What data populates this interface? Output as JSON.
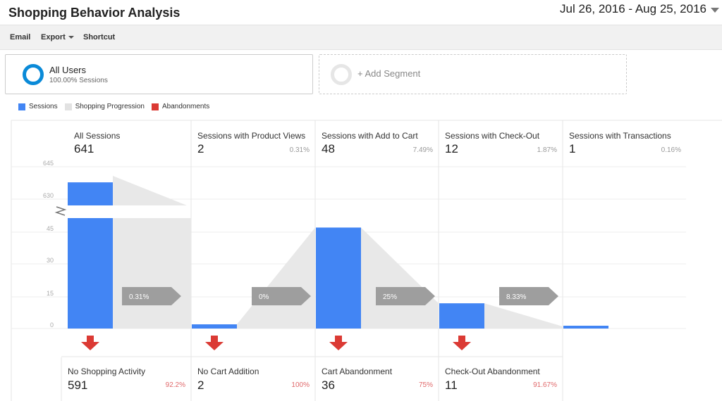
{
  "header": {
    "title": "Shopping Behavior Analysis",
    "date_range": "Jul 26, 2016 - Aug 25, 2016"
  },
  "toolbar": {
    "email_label": "Email",
    "export_label": "Export",
    "shortcut_label": "Shortcut"
  },
  "segments": {
    "active": {
      "name": "All Users",
      "detail": "100.00% Sessions"
    },
    "add_label": "+ Add Segment"
  },
  "legend": {
    "sessions": "Sessions",
    "progression": "Shopping Progression",
    "abandonments": "Abandonments"
  },
  "colors": {
    "sessions": "#4285f4",
    "progression": "#e8e8e8",
    "abandonment": "#db3a34",
    "arrow_tag": "#9e9e9e",
    "segment_donut": "#0a8ad8"
  },
  "stages": [
    {
      "label": "All Sessions",
      "count": "641",
      "pct": ""
    },
    {
      "label": "Sessions with Product Views",
      "count": "2",
      "pct": "0.31%"
    },
    {
      "label": "Sessions with Add to Cart",
      "count": "48",
      "pct": "7.49%"
    },
    {
      "label": "Sessions with Check-Out",
      "count": "12",
      "pct": "1.87%"
    },
    {
      "label": "Sessions with Transactions",
      "count": "1",
      "pct": "0.16%"
    }
  ],
  "abandonments": [
    {
      "label": "No Shopping Activity",
      "count": "591",
      "pct": "92.2%"
    },
    {
      "label": "No Cart Addition",
      "count": "2",
      "pct": "100%"
    },
    {
      "label": "Cart Abandonment",
      "count": "36",
      "pct": "75%"
    },
    {
      "label": "Check-Out Abandonment",
      "count": "11",
      "pct": "91.67%"
    }
  ],
  "chart_data": {
    "type": "bar",
    "categories": [
      "All Sessions",
      "Sessions with Product Views",
      "Sessions with Add to Cart",
      "Sessions with Check-Out",
      "Sessions with Transactions"
    ],
    "values": [
      641,
      2,
      48,
      12,
      1
    ],
    "progression_labels": [
      "0.31%",
      "0%",
      "25%",
      "8.33%"
    ],
    "y_ticks": [
      "645",
      "630",
      "45",
      "30",
      "15",
      "0"
    ],
    "broken_axis": {
      "lower_range": [
        0,
        52.5
      ],
      "upper_range": [
        626.7,
        645
      ]
    },
    "grid": true
  }
}
